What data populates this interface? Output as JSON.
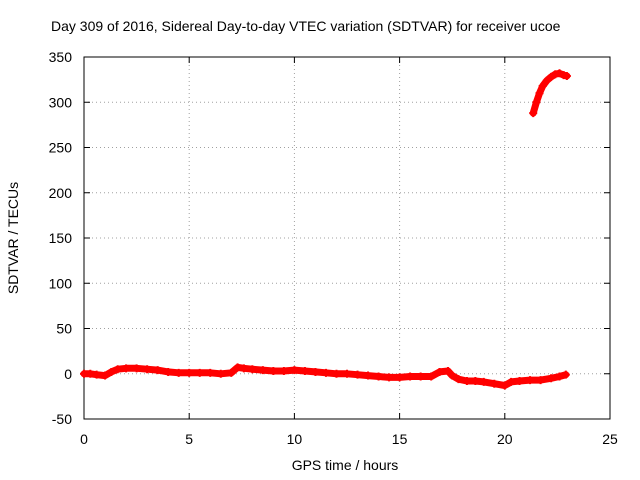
{
  "chart_data": {
    "type": "scatter",
    "title": "Day 309 of 2016, Sidereal Day-to-day VTEC variation (SDTVAR) for receiver ucoe",
    "xlabel": "GPS time / hours",
    "ylabel": "SDTVAR / TECUs",
    "xlim": [
      0,
      25
    ],
    "ylim": [
      -50,
      350
    ],
    "x_ticks": [
      0,
      5,
      10,
      15,
      20,
      25
    ],
    "y_ticks": [
      -50,
      0,
      50,
      100,
      150,
      200,
      250,
      300,
      350
    ],
    "x_tick_labels": [
      "0",
      "5",
      "10",
      "15",
      "20",
      "25"
    ],
    "y_tick_labels": [
      "-50",
      "0",
      "50",
      "100",
      "150",
      "200",
      "250",
      "300",
      "350"
    ],
    "grid": true,
    "marker_color": "#ff0000",
    "series": [
      {
        "name": "SDTVAR",
        "points": [
          [
            0.0,
            0
          ],
          [
            0.3,
            0
          ],
          [
            0.6,
            -1
          ],
          [
            1.0,
            -2
          ],
          [
            1.3,
            2
          ],
          [
            1.6,
            5
          ],
          [
            2.0,
            6
          ],
          [
            2.5,
            6
          ],
          [
            3.0,
            5
          ],
          [
            3.5,
            4
          ],
          [
            4.0,
            2
          ],
          [
            4.5,
            1
          ],
          [
            5.0,
            1
          ],
          [
            5.5,
            1
          ],
          [
            6.0,
            1
          ],
          [
            6.5,
            0
          ],
          [
            7.0,
            1
          ],
          [
            7.3,
            7
          ],
          [
            7.6,
            6
          ],
          [
            8.0,
            5
          ],
          [
            8.5,
            4
          ],
          [
            9.0,
            3
          ],
          [
            9.5,
            3
          ],
          [
            10.0,
            4
          ],
          [
            10.5,
            3
          ],
          [
            11.0,
            2
          ],
          [
            11.5,
            1
          ],
          [
            12.0,
            0
          ],
          [
            12.5,
            0
          ],
          [
            13.0,
            -1
          ],
          [
            13.5,
            -2
          ],
          [
            14.0,
            -3
          ],
          [
            14.5,
            -4
          ],
          [
            15.0,
            -4
          ],
          [
            15.5,
            -3
          ],
          [
            16.0,
            -3
          ],
          [
            16.5,
            -3
          ],
          [
            16.9,
            2
          ],
          [
            17.3,
            3
          ],
          [
            17.5,
            -2
          ],
          [
            17.8,
            -6
          ],
          [
            18.2,
            -8
          ],
          [
            18.6,
            -8
          ],
          [
            19.0,
            -9
          ],
          [
            19.5,
            -11
          ],
          [
            20.0,
            -13
          ],
          [
            20.3,
            -9
          ],
          [
            20.7,
            -8
          ],
          [
            21.2,
            -7
          ],
          [
            21.7,
            -7
          ],
          [
            22.2,
            -5
          ],
          [
            22.6,
            -3
          ],
          [
            22.9,
            -1
          ],
          [
            21.35,
            288
          ],
          [
            21.5,
            300
          ],
          [
            21.65,
            310
          ],
          [
            21.8,
            318
          ],
          [
            22.0,
            324
          ],
          [
            22.2,
            328
          ],
          [
            22.4,
            331
          ],
          [
            22.6,
            332
          ],
          [
            22.8,
            330
          ],
          [
            22.95,
            329
          ]
        ]
      }
    ]
  }
}
